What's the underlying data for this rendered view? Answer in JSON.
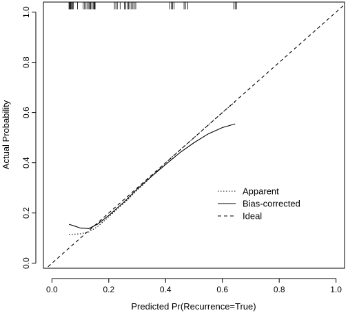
{
  "chart_data": {
    "type": "line",
    "xlabel": "Predicted Pr(Recurrence=True)",
    "ylabel": "Actual Probability",
    "xlim": [
      -0.03,
      1.03
    ],
    "ylim": [
      -0.02,
      1.04
    ],
    "xticks": [
      {
        "value": 0.0,
        "label": "0.0"
      },
      {
        "value": 0.2,
        "label": "0.2"
      },
      {
        "value": 0.4,
        "label": "0.4"
      },
      {
        "value": 0.6,
        "label": "0.6"
      },
      {
        "value": 0.8,
        "label": "0.8"
      },
      {
        "value": 1.0,
        "label": "1.0"
      }
    ],
    "yticks": [
      {
        "value": 0.0,
        "label": "0.0"
      },
      {
        "value": 0.2,
        "label": "0.2"
      },
      {
        "value": 0.4,
        "label": "0.4"
      },
      {
        "value": 0.6,
        "label": "0.6"
      },
      {
        "value": 0.8,
        "label": "0.8"
      },
      {
        "value": 1.0,
        "label": "1.0"
      }
    ],
    "grid": false,
    "legend_position": "right",
    "series": [
      {
        "name": "Apparent",
        "style": "dotted",
        "x": [
          0.06,
          0.1,
          0.13,
          0.16,
          0.2,
          0.25,
          0.3,
          0.35,
          0.4,
          0.45,
          0.5,
          0.55,
          0.6,
          0.645
        ],
        "y": [
          0.115,
          0.117,
          0.125,
          0.145,
          0.185,
          0.235,
          0.29,
          0.345,
          0.4,
          0.45,
          0.5,
          0.55,
          0.6,
          0.643
        ]
      },
      {
        "name": "Bias-corrected",
        "style": "solid",
        "x": [
          0.06,
          0.08,
          0.1,
          0.13,
          0.16,
          0.2,
          0.25,
          0.3,
          0.35,
          0.4,
          0.45,
          0.5,
          0.55,
          0.6,
          0.645
        ],
        "y": [
          0.155,
          0.148,
          0.14,
          0.138,
          0.155,
          0.19,
          0.24,
          0.295,
          0.345,
          0.393,
          0.44,
          0.48,
          0.515,
          0.54,
          0.555
        ]
      },
      {
        "name": "Ideal",
        "style": "dashed",
        "x": [
          -0.03,
          1.03
        ],
        "y": [
          -0.03,
          1.03
        ]
      }
    ],
    "rug_y": 1.025,
    "rug_x": [
      0.06,
      0.062,
      0.065,
      0.067,
      0.07,
      0.072,
      0.075,
      0.09,
      0.11,
      0.115,
      0.12,
      0.125,
      0.13,
      0.133,
      0.136,
      0.14,
      0.145,
      0.148,
      0.15,
      0.152,
      0.22,
      0.225,
      0.23,
      0.24,
      0.255,
      0.26,
      0.265,
      0.27,
      0.275,
      0.28,
      0.285,
      0.29,
      0.295,
      0.415,
      0.42,
      0.425,
      0.43,
      0.465,
      0.47,
      0.478,
      0.64,
      0.645,
      0.65
    ]
  }
}
